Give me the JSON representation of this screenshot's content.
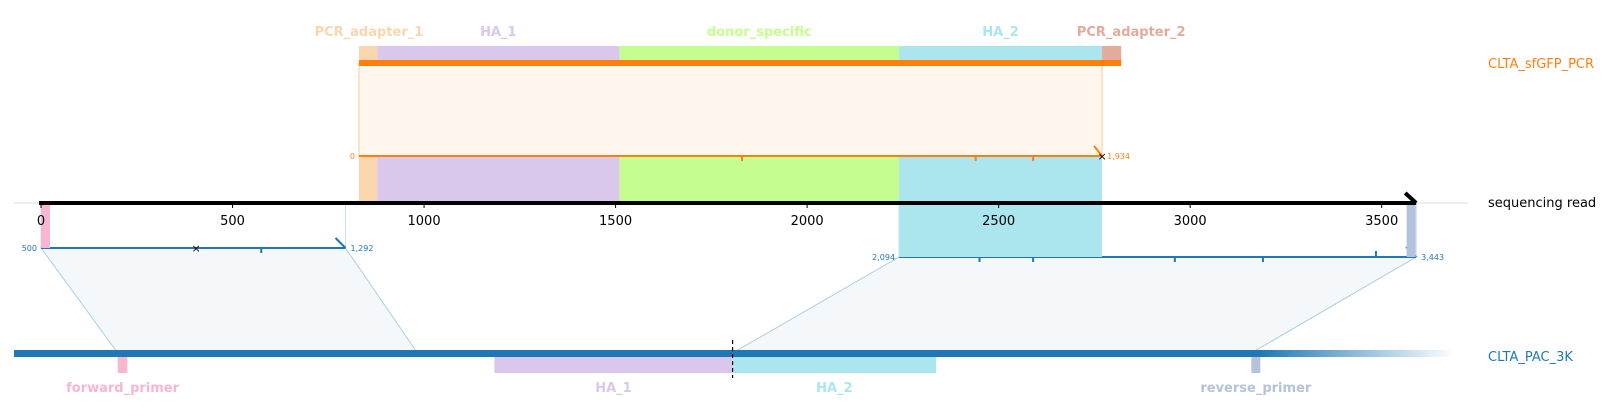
{
  "reference_axis": {
    "name": "sequencing read",
    "min": 0,
    "max": 3600,
    "ticks": [
      0,
      500,
      1000,
      1500,
      2000,
      2500,
      3000,
      3500
    ],
    "tick_labels": [
      "0",
      "500",
      "1000",
      "1500",
      "2000",
      "2500",
      "3000",
      "3500"
    ],
    "color": "#000000"
  },
  "top_track": {
    "name": "CLTA_sfGFP_PCR",
    "color": "#ff7f0e",
    "features": [
      {
        "label": "PCR_adapter_1",
        "start": 830,
        "end": 878,
        "color": "#fad6af"
      },
      {
        "label": "HA_1",
        "start": 878,
        "end": 1510,
        "color": "#d9c8ec"
      },
      {
        "label": "donor_specific",
        "start": 1510,
        "end": 2240,
        "color": "#c5fe8f"
      },
      {
        "label": "HA_2",
        "start": 2240,
        "end": 2770,
        "color": "#abe6ef"
      },
      {
        "label": "PCR_adapter_2",
        "start": 2770,
        "end": 2820,
        "color": "#e3ab9c"
      }
    ],
    "alignment": {
      "read_start": 830,
      "read_end": 2770,
      "query_start_label": "0",
      "query_end_label": "1,934",
      "mismatch_ticks": [
        1830,
        2440,
        2590
      ],
      "mismatch_x": [
        2770
      ]
    }
  },
  "bottom_track": {
    "name": "CLTA_PAC_3K",
    "color": "#1f77b4",
    "cut_site": 1870,
    "features": [
      {
        "label": "forward_primer",
        "start": 270,
        "end": 295,
        "color": "#f7b6d2"
      },
      {
        "label": "HA_1",
        "start": 1250,
        "end": 1870,
        "color": "#d9c8ec"
      },
      {
        "label": "HA_2",
        "start": 1870,
        "end": 2400,
        "color": "#abe6ef"
      },
      {
        "label": "reverse_primer",
        "start": 3220,
        "end": 3240,
        "color": "#b4c2dc"
      }
    ],
    "alignments": [
      {
        "read_start": 0,
        "read_end": 795,
        "target_start": 270,
        "target_end": 1050,
        "start_label": "500",
        "end_label": "1,292",
        "mismatch_ticks": [
          575
        ],
        "mismatch_x": [
          405
        ]
      },
      {
        "read_start": 2240,
        "read_end": 3590,
        "target_start": 1870,
        "target_end": 3220,
        "start_label": "2,094",
        "end_label": "3,443",
        "mismatch_ticks": [
          2450,
          2590,
          2960,
          3190,
          3485
        ],
        "mismatch_x": []
      }
    ]
  }
}
